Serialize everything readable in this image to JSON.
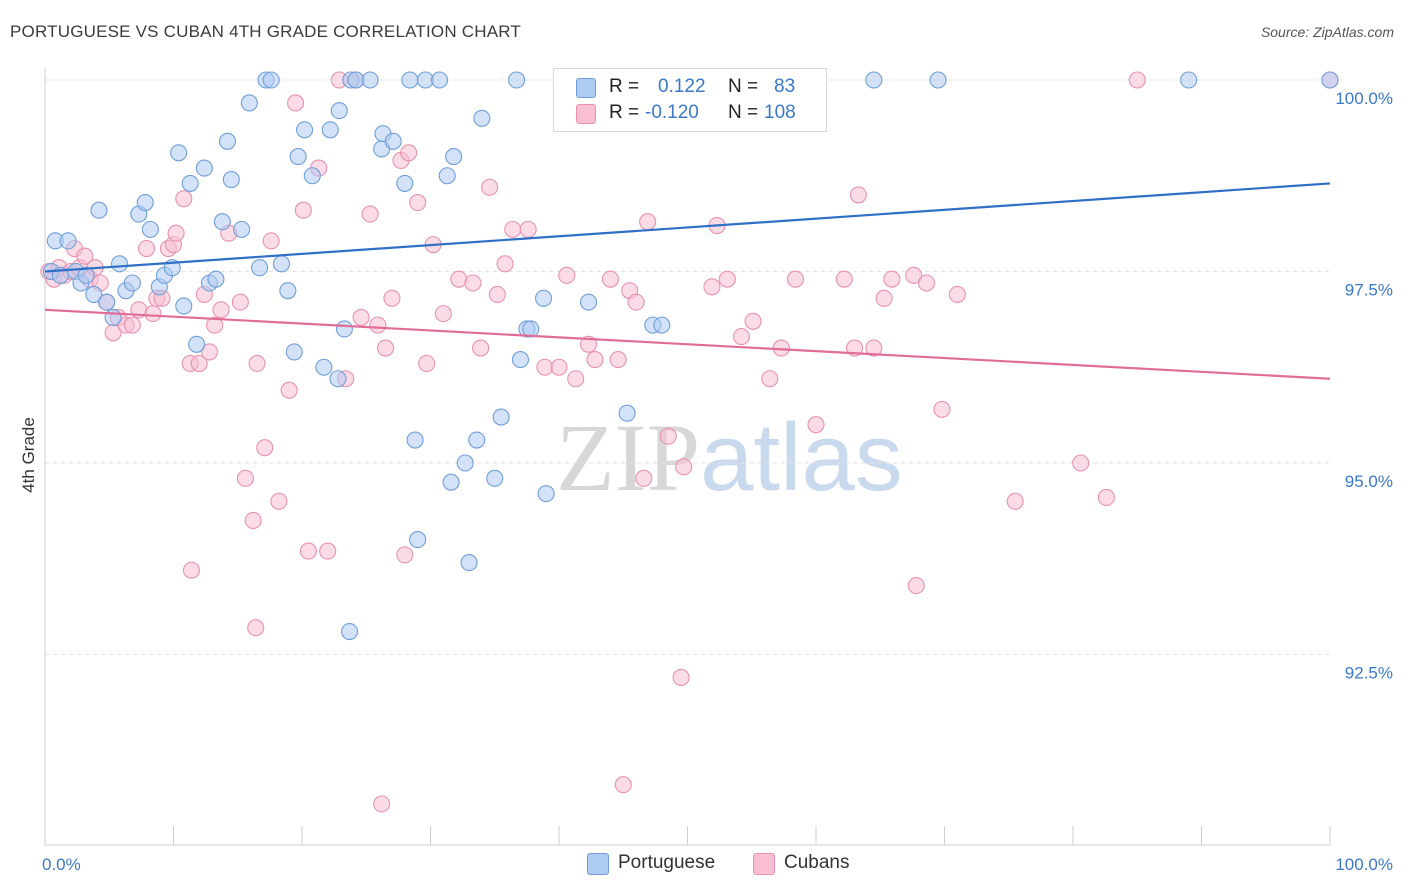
{
  "title": "PORTUGUESE VS CUBAN 4TH GRADE CORRELATION CHART",
  "source": "Source: ZipAtlas.com",
  "watermark": {
    "zip": "ZIP",
    "atlas": "atlas"
  },
  "colors": {
    "portuguese_fill": "#aecbf2",
    "portuguese_stroke": "#6f9fd8",
    "portuguese_line": "#2f6fc6",
    "cubans_fill": "#f7bfd1",
    "cubans_stroke": "#e892b0",
    "cubans_line": "#e06c99",
    "axis_text": "#3a78c8",
    "grid": "#e2e2e2"
  },
  "legend": {
    "rows": [
      {
        "r_label": "R =",
        "r_value": "0.122",
        "n_label": "N =",
        "n_value": "83"
      },
      {
        "r_label": "R =",
        "r_value": "-0.120",
        "n_label": "N =",
        "n_value": "108"
      }
    ]
  },
  "chart_data": {
    "type": "scatter",
    "title": "PORTUGUESE VS CUBAN 4TH GRADE CORRELATION CHART",
    "xlabel": "",
    "ylabel": "4th Grade",
    "xlim": [
      0,
      100
    ],
    "ylim": [
      90.5,
      100.2
    ],
    "x_tick_labels": [
      "0.0%",
      "100.0%"
    ],
    "y_ticks": [
      92.5,
      95.0,
      97.5,
      100.0
    ],
    "y_tick_labels": [
      "92.5%",
      "95.0%",
      "97.5%",
      "100.0%"
    ],
    "grid": true,
    "legend_position": "bottom",
    "series": [
      {
        "name": "Portuguese",
        "r": 0.122,
        "n": 83,
        "trend": [
          [
            0,
            97.5
          ],
          [
            100,
            98.65
          ]
        ],
        "points": [
          [
            0.5,
            97.5
          ],
          [
            0.8,
            97.9
          ],
          [
            1.2,
            97.45
          ],
          [
            1.8,
            97.9
          ],
          [
            2.4,
            97.5
          ],
          [
            2.8,
            97.35
          ],
          [
            3.2,
            97.45
          ],
          [
            3.8,
            97.2
          ],
          [
            4.2,
            98.3
          ],
          [
            4.8,
            97.1
          ],
          [
            5.3,
            96.9
          ],
          [
            5.8,
            97.6
          ],
          [
            6.3,
            97.25
          ],
          [
            6.8,
            97.35
          ],
          [
            7.3,
            98.25
          ],
          [
            7.8,
            98.4
          ],
          [
            8.2,
            98.05
          ],
          [
            8.9,
            97.3
          ],
          [
            9.3,
            97.45
          ],
          [
            9.9,
            97.55
          ],
          [
            10.4,
            99.05
          ],
          [
            10.8,
            97.05
          ],
          [
            11.3,
            98.65
          ],
          [
            11.8,
            96.55
          ],
          [
            12.4,
            98.85
          ],
          [
            12.8,
            97.35
          ],
          [
            13.3,
            97.4
          ],
          [
            13.8,
            98.15
          ],
          [
            14.2,
            99.2
          ],
          [
            14.5,
            98.7
          ],
          [
            15.3,
            98.05
          ],
          [
            15.9,
            99.7
          ],
          [
            16.7,
            97.55
          ],
          [
            17.2,
            100.0
          ],
          [
            17.6,
            100.0
          ],
          [
            18.4,
            97.6
          ],
          [
            18.9,
            97.25
          ],
          [
            19.4,
            96.45
          ],
          [
            19.7,
            99.0
          ],
          [
            20.2,
            99.35
          ],
          [
            20.8,
            98.75
          ],
          [
            21.7,
            96.25
          ],
          [
            22.2,
            99.35
          ],
          [
            22.8,
            96.1
          ],
          [
            22.9,
            99.6
          ],
          [
            23.3,
            96.75
          ],
          [
            23.8,
            100.0
          ],
          [
            24.2,
            100.0
          ],
          [
            25.3,
            100.0
          ],
          [
            26.2,
            99.1
          ],
          [
            26.3,
            99.3
          ],
          [
            27.1,
            99.2
          ],
          [
            28.0,
            98.65
          ],
          [
            28.4,
            100.0
          ],
          [
            28.8,
            95.3
          ],
          [
            29.0,
            94.0
          ],
          [
            29.6,
            100.0
          ],
          [
            30.7,
            100.0
          ],
          [
            31.3,
            98.75
          ],
          [
            31.6,
            94.75
          ],
          [
            31.8,
            99.0
          ],
          [
            32.7,
            95.0
          ],
          [
            33.0,
            93.7
          ],
          [
            33.6,
            95.3
          ],
          [
            34.0,
            99.5
          ],
          [
            35.0,
            94.8
          ],
          [
            35.5,
            95.6
          ],
          [
            36.7,
            100.0
          ],
          [
            37.0,
            96.35
          ],
          [
            37.5,
            96.75
          ],
          [
            37.8,
            96.75
          ],
          [
            38.8,
            97.15
          ],
          [
            39.0,
            94.6
          ],
          [
            42.3,
            97.1
          ],
          [
            45.3,
            95.65
          ],
          [
            47.3,
            96.8
          ],
          [
            48.0,
            96.8
          ],
          [
            48.5,
            100.0
          ],
          [
            49.0,
            100.0
          ],
          [
            23.7,
            92.8
          ],
          [
            64.5,
            100.0
          ],
          [
            69.5,
            100.0
          ],
          [
            89.0,
            100.0
          ],
          [
            100.0,
            100.0
          ]
        ]
      },
      {
        "name": "Cubans",
        "r": -0.12,
        "n": 108,
        "trend": [
          [
            0,
            97.0
          ],
          [
            100,
            96.1
          ]
        ],
        "points": [
          [
            0.3,
            97.5
          ],
          [
            0.7,
            97.4
          ],
          [
            1.1,
            97.55
          ],
          [
            1.5,
            97.45
          ],
          [
            2.0,
            97.5
          ],
          [
            2.3,
            97.8
          ],
          [
            2.7,
            97.55
          ],
          [
            3.1,
            97.7
          ],
          [
            3.5,
            97.4
          ],
          [
            3.9,
            97.55
          ],
          [
            4.3,
            97.35
          ],
          [
            4.8,
            97.1
          ],
          [
            5.3,
            96.7
          ],
          [
            5.7,
            96.9
          ],
          [
            6.3,
            96.8
          ],
          [
            6.8,
            96.8
          ],
          [
            7.3,
            97.0
          ],
          [
            7.9,
            97.8
          ],
          [
            8.4,
            96.95
          ],
          [
            8.7,
            97.15
          ],
          [
            9.1,
            97.15
          ],
          [
            9.6,
            97.8
          ],
          [
            10.0,
            97.85
          ],
          [
            10.2,
            98.0
          ],
          [
            10.8,
            98.45
          ],
          [
            11.3,
            96.3
          ],
          [
            12.0,
            96.3
          ],
          [
            12.4,
            97.2
          ],
          [
            12.8,
            96.45
          ],
          [
            13.2,
            96.8
          ],
          [
            13.7,
            97.0
          ],
          [
            14.3,
            98.0
          ],
          [
            15.2,
            97.1
          ],
          [
            15.6,
            94.8
          ],
          [
            16.2,
            94.25
          ],
          [
            16.5,
            96.3
          ],
          [
            17.1,
            95.2
          ],
          [
            17.6,
            97.9
          ],
          [
            18.2,
            94.5
          ],
          [
            19.0,
            95.95
          ],
          [
            19.5,
            99.7
          ],
          [
            20.1,
            98.3
          ],
          [
            20.5,
            93.85
          ],
          [
            21.3,
            98.85
          ],
          [
            22.0,
            93.85
          ],
          [
            22.9,
            100.0
          ],
          [
            23.4,
            96.1
          ],
          [
            24.2,
            100.0
          ],
          [
            24.6,
            96.9
          ],
          [
            25.3,
            98.25
          ],
          [
            25.9,
            96.8
          ],
          [
            26.5,
            96.5
          ],
          [
            27.0,
            97.15
          ],
          [
            27.7,
            98.95
          ],
          [
            28.3,
            99.05
          ],
          [
            29.0,
            98.4
          ],
          [
            29.7,
            96.3
          ],
          [
            30.2,
            97.85
          ],
          [
            31.0,
            96.95
          ],
          [
            32.2,
            97.4
          ],
          [
            33.3,
            97.35
          ],
          [
            33.9,
            96.5
          ],
          [
            34.6,
            98.6
          ],
          [
            35.2,
            97.2
          ],
          [
            35.8,
            97.6
          ],
          [
            36.4,
            98.05
          ],
          [
            37.6,
            98.05
          ],
          [
            28.0,
            93.8
          ],
          [
            38.9,
            96.25
          ],
          [
            40.0,
            96.25
          ],
          [
            40.6,
            97.45
          ],
          [
            41.3,
            96.1
          ],
          [
            42.3,
            96.55
          ],
          [
            42.8,
            96.35
          ],
          [
            44.0,
            97.4
          ],
          [
            44.6,
            96.35
          ],
          [
            45.5,
            97.25
          ],
          [
            46.0,
            97.1
          ],
          [
            46.6,
            94.8
          ],
          [
            46.9,
            98.15
          ],
          [
            48.5,
            95.35
          ],
          [
            49.7,
            94.95
          ],
          [
            51.9,
            97.3
          ],
          [
            52.3,
            98.1
          ],
          [
            53.1,
            97.4
          ],
          [
            54.2,
            96.65
          ],
          [
            55.1,
            96.85
          ],
          [
            56.4,
            96.1
          ],
          [
            57.3,
            96.5
          ],
          [
            58.4,
            97.4
          ],
          [
            60.0,
            95.5
          ],
          [
            62.2,
            97.4
          ],
          [
            63.0,
            96.5
          ],
          [
            63.3,
            98.5
          ],
          [
            64.5,
            96.5
          ],
          [
            65.3,
            97.15
          ],
          [
            65.9,
            97.4
          ],
          [
            67.6,
            97.45
          ],
          [
            67.8,
            93.4
          ],
          [
            68.6,
            97.35
          ],
          [
            69.8,
            95.7
          ],
          [
            71.0,
            97.2
          ],
          [
            75.5,
            94.5
          ],
          [
            80.6,
            95.0
          ],
          [
            82.6,
            94.55
          ],
          [
            85.0,
            100.0
          ],
          [
            100.0,
            100.0
          ],
          [
            49.5,
            92.2
          ],
          [
            45.0,
            90.8
          ],
          [
            26.2,
            90.55
          ],
          [
            11.4,
            93.6
          ],
          [
            16.4,
            92.85
          ]
        ]
      }
    ]
  }
}
